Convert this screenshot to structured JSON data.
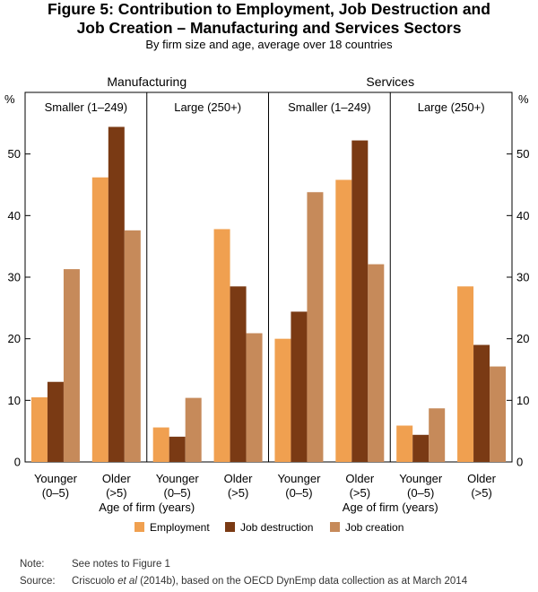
{
  "header": {
    "title_line1": "Figure 5: Contribution to Employment, Job Destruction and",
    "title_line2": "Job Creation – Manufacturing and Services Sectors",
    "subtitle": "By firm size and age, average over 18 countries"
  },
  "chart_data": {
    "type": "bar",
    "ylim": [
      0,
      60
    ],
    "yticks": [
      0,
      10,
      20,
      30,
      40,
      50
    ],
    "ylabel": "%",
    "xlabel": "Age of firm (years)",
    "sectors": [
      {
        "name": "Manufacturing",
        "groups": [
          {
            "size": "Smaller (1–249)",
            "categories": [
              {
                "label1": "Younger",
                "label2": "(0–5)",
                "values": [
                  10.5,
                  13,
                  31.3
                ]
              },
              {
                "label1": "Older",
                "label2": "(>5)",
                "values": [
                  46.2,
                  54.4,
                  37.6
                ]
              }
            ]
          },
          {
            "size": "Large (250+)",
            "categories": [
              {
                "label1": "Younger",
                "label2": "(0–5)",
                "values": [
                  5.6,
                  4.1,
                  10.4
                ]
              },
              {
                "label1": "Older",
                "label2": "(>5)",
                "values": [
                  37.8,
                  28.5,
                  20.9
                ]
              }
            ]
          }
        ]
      },
      {
        "name": "Services",
        "groups": [
          {
            "size": "Smaller (1–249)",
            "categories": [
              {
                "label1": "Younger",
                "label2": "(0–5)",
                "values": [
                  20,
                  24.4,
                  43.8
                ]
              },
              {
                "label1": "Older",
                "label2": "(>5)",
                "values": [
                  45.8,
                  52.2,
                  32.1
                ]
              }
            ]
          },
          {
            "size": "Large (250+)",
            "categories": [
              {
                "label1": "Younger",
                "label2": "(0–5)",
                "values": [
                  5.9,
                  4.4,
                  8.7
                ]
              },
              {
                "label1": "Older",
                "label2": "(>5)",
                "values": [
                  28.5,
                  19,
                  15.5
                ]
              }
            ]
          }
        ]
      }
    ],
    "series": [
      {
        "name": "Employment",
        "color": "#F0A050"
      },
      {
        "name": "Job destruction",
        "color": "#7A3A14"
      },
      {
        "name": "Job creation",
        "color": "#C68A5A"
      }
    ]
  },
  "notes": {
    "note_label": "Note:",
    "note_text": "See notes to Figure 1",
    "source_label": "Source:",
    "source_text_pre": "Criscuolo ",
    "source_text_italic": "et al",
    "source_text_post": " (2014b), based on the OECD DynEmp data collection as at March 2014"
  }
}
